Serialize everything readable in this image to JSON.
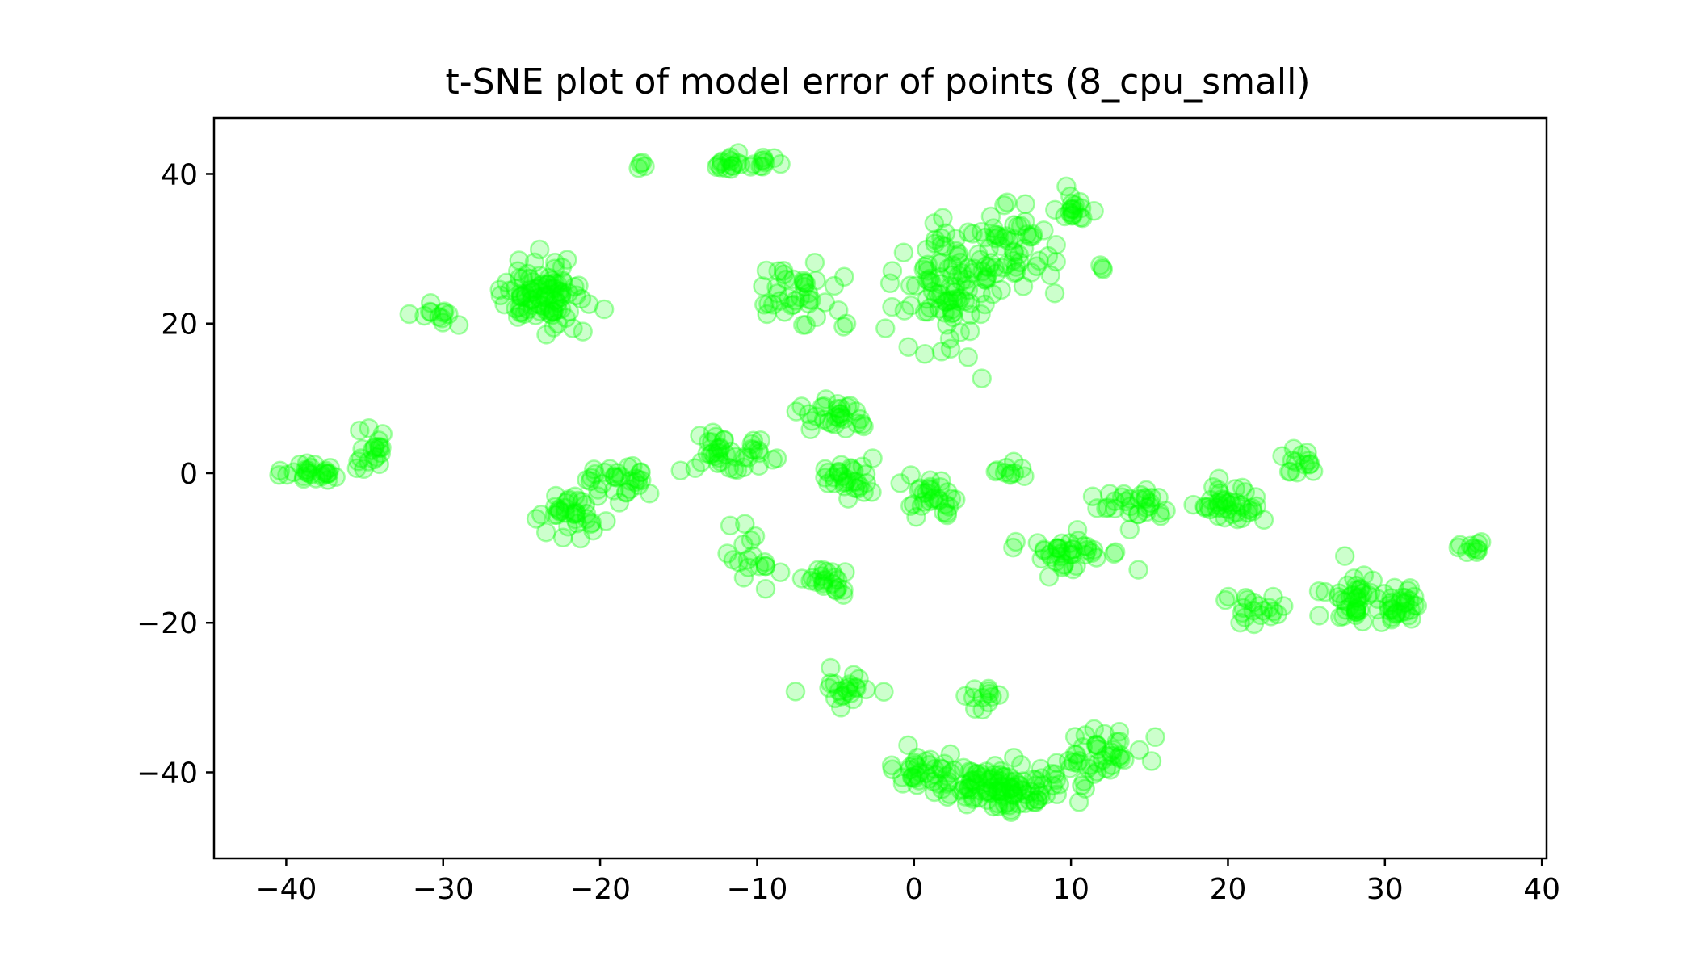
{
  "chart_data": {
    "type": "scatter",
    "title": "t-SNE plot of model error of points (8_cpu_small)",
    "xlabel": "",
    "ylabel": "",
    "xlim": [
      -44.6,
      40.3
    ],
    "ylim": [
      -51.5,
      47.5
    ],
    "xticks": [
      -40,
      -30,
      -20,
      -10,
      0,
      10,
      20,
      30,
      40
    ],
    "yticks": [
      -40,
      -20,
      0,
      20,
      40
    ],
    "xtick_labels": [
      "−40",
      "−30",
      "−20",
      "−10",
      "0",
      "10",
      "20",
      "30",
      "40"
    ],
    "ytick_labels": [
      "−40",
      "−20",
      "0",
      "20",
      "40"
    ],
    "grid": false,
    "legend": null,
    "marker": "circle, semi-transparent",
    "point_color": "#00ff00",
    "point_alpha": 0.2,
    "clusters": [
      {
        "cx": -38.5,
        "cy": 0,
        "rx": 2.5,
        "ry": 2.0,
        "n": 26
      },
      {
        "cx": -34.5,
        "cy": 3,
        "rx": 1.8,
        "ry": 3.2,
        "n": 20
      },
      {
        "cx": -31,
        "cy": 21,
        "rx": 2.5,
        "ry": 1.8,
        "n": 12
      },
      {
        "cx": -23.5,
        "cy": 24,
        "rx": 3.5,
        "ry": 5.5,
        "n": 95
      },
      {
        "cx": -17.3,
        "cy": 41,
        "rx": 0.6,
        "ry": 0.6,
        "n": 4
      },
      {
        "cx": -11,
        "cy": 41.5,
        "rx": 3.5,
        "ry": 1.3,
        "n": 25
      },
      {
        "cx": -22,
        "cy": -6,
        "rx": 3.0,
        "ry": 4.0,
        "n": 35
      },
      {
        "cx": -19,
        "cy": -1,
        "rx": 3.0,
        "ry": 4.0,
        "n": 30
      },
      {
        "cx": -12,
        "cy": 3,
        "rx": 4.0,
        "ry": 3.5,
        "n": 40
      },
      {
        "cx": -11,
        "cy": -11,
        "rx": 2.5,
        "ry": 4.5,
        "n": 18
      },
      {
        "cx": -7,
        "cy": 24,
        "rx": 3.5,
        "ry": 5.0,
        "n": 40
      },
      {
        "cx": -5,
        "cy": 8,
        "rx": 3.0,
        "ry": 3.0,
        "n": 30
      },
      {
        "cx": -6,
        "cy": -14,
        "rx": 2.5,
        "ry": 2.5,
        "n": 22
      },
      {
        "cx": -4,
        "cy": -1,
        "rx": 2.5,
        "ry": 3.0,
        "n": 30
      },
      {
        "cx": 1,
        "cy": -3,
        "rx": 3.0,
        "ry": 3.0,
        "n": 30
      },
      {
        "cx": 2,
        "cy": 25,
        "rx": 4.0,
        "ry": 10.0,
        "n": 90
      },
      {
        "cx": 6.5,
        "cy": 30,
        "rx": 3.5,
        "ry": 8.0,
        "n": 60
      },
      {
        "cx": 10,
        "cy": 35,
        "rx": 2.0,
        "ry": 3.0,
        "n": 18
      },
      {
        "cx": 12,
        "cy": 27.5,
        "rx": 0.6,
        "ry": 0.6,
        "n": 3
      },
      {
        "cx": 6,
        "cy": 0,
        "rx": 1.5,
        "ry": 1.5,
        "n": 10
      },
      {
        "cx": 10,
        "cy": -11,
        "rx": 3.5,
        "ry": 3.5,
        "n": 40
      },
      {
        "cx": 14,
        "cy": -4,
        "rx": 3.0,
        "ry": 3.0,
        "n": 30
      },
      {
        "cx": 20,
        "cy": -4,
        "rx": 2.5,
        "ry": 4.0,
        "n": 40
      },
      {
        "cx": 22,
        "cy": -18,
        "rx": 2.5,
        "ry": 3.0,
        "n": 20
      },
      {
        "cx": 24.5,
        "cy": 1,
        "rx": 1.5,
        "ry": 3.0,
        "n": 14
      },
      {
        "cx": 28,
        "cy": -17,
        "rx": 2.5,
        "ry": 5.0,
        "n": 40
      },
      {
        "cx": 31,
        "cy": -17,
        "rx": 1.8,
        "ry": 3.5,
        "n": 30
      },
      {
        "cx": 35.5,
        "cy": -10,
        "rx": 1.2,
        "ry": 1.2,
        "n": 10
      },
      {
        "cx": -4.5,
        "cy": -29,
        "rx": 3.0,
        "ry": 3.0,
        "n": 22
      },
      {
        "cx": 1,
        "cy": -40,
        "rx": 3.0,
        "ry": 3.5,
        "n": 35
      },
      {
        "cx": 6,
        "cy": -42,
        "rx": 5.5,
        "ry": 4.0,
        "n": 110
      },
      {
        "cx": 12,
        "cy": -38,
        "rx": 3.5,
        "ry": 4.5,
        "n": 40
      },
      {
        "cx": 4.5,
        "cy": -30,
        "rx": 2.0,
        "ry": 2.5,
        "n": 12
      }
    ]
  }
}
